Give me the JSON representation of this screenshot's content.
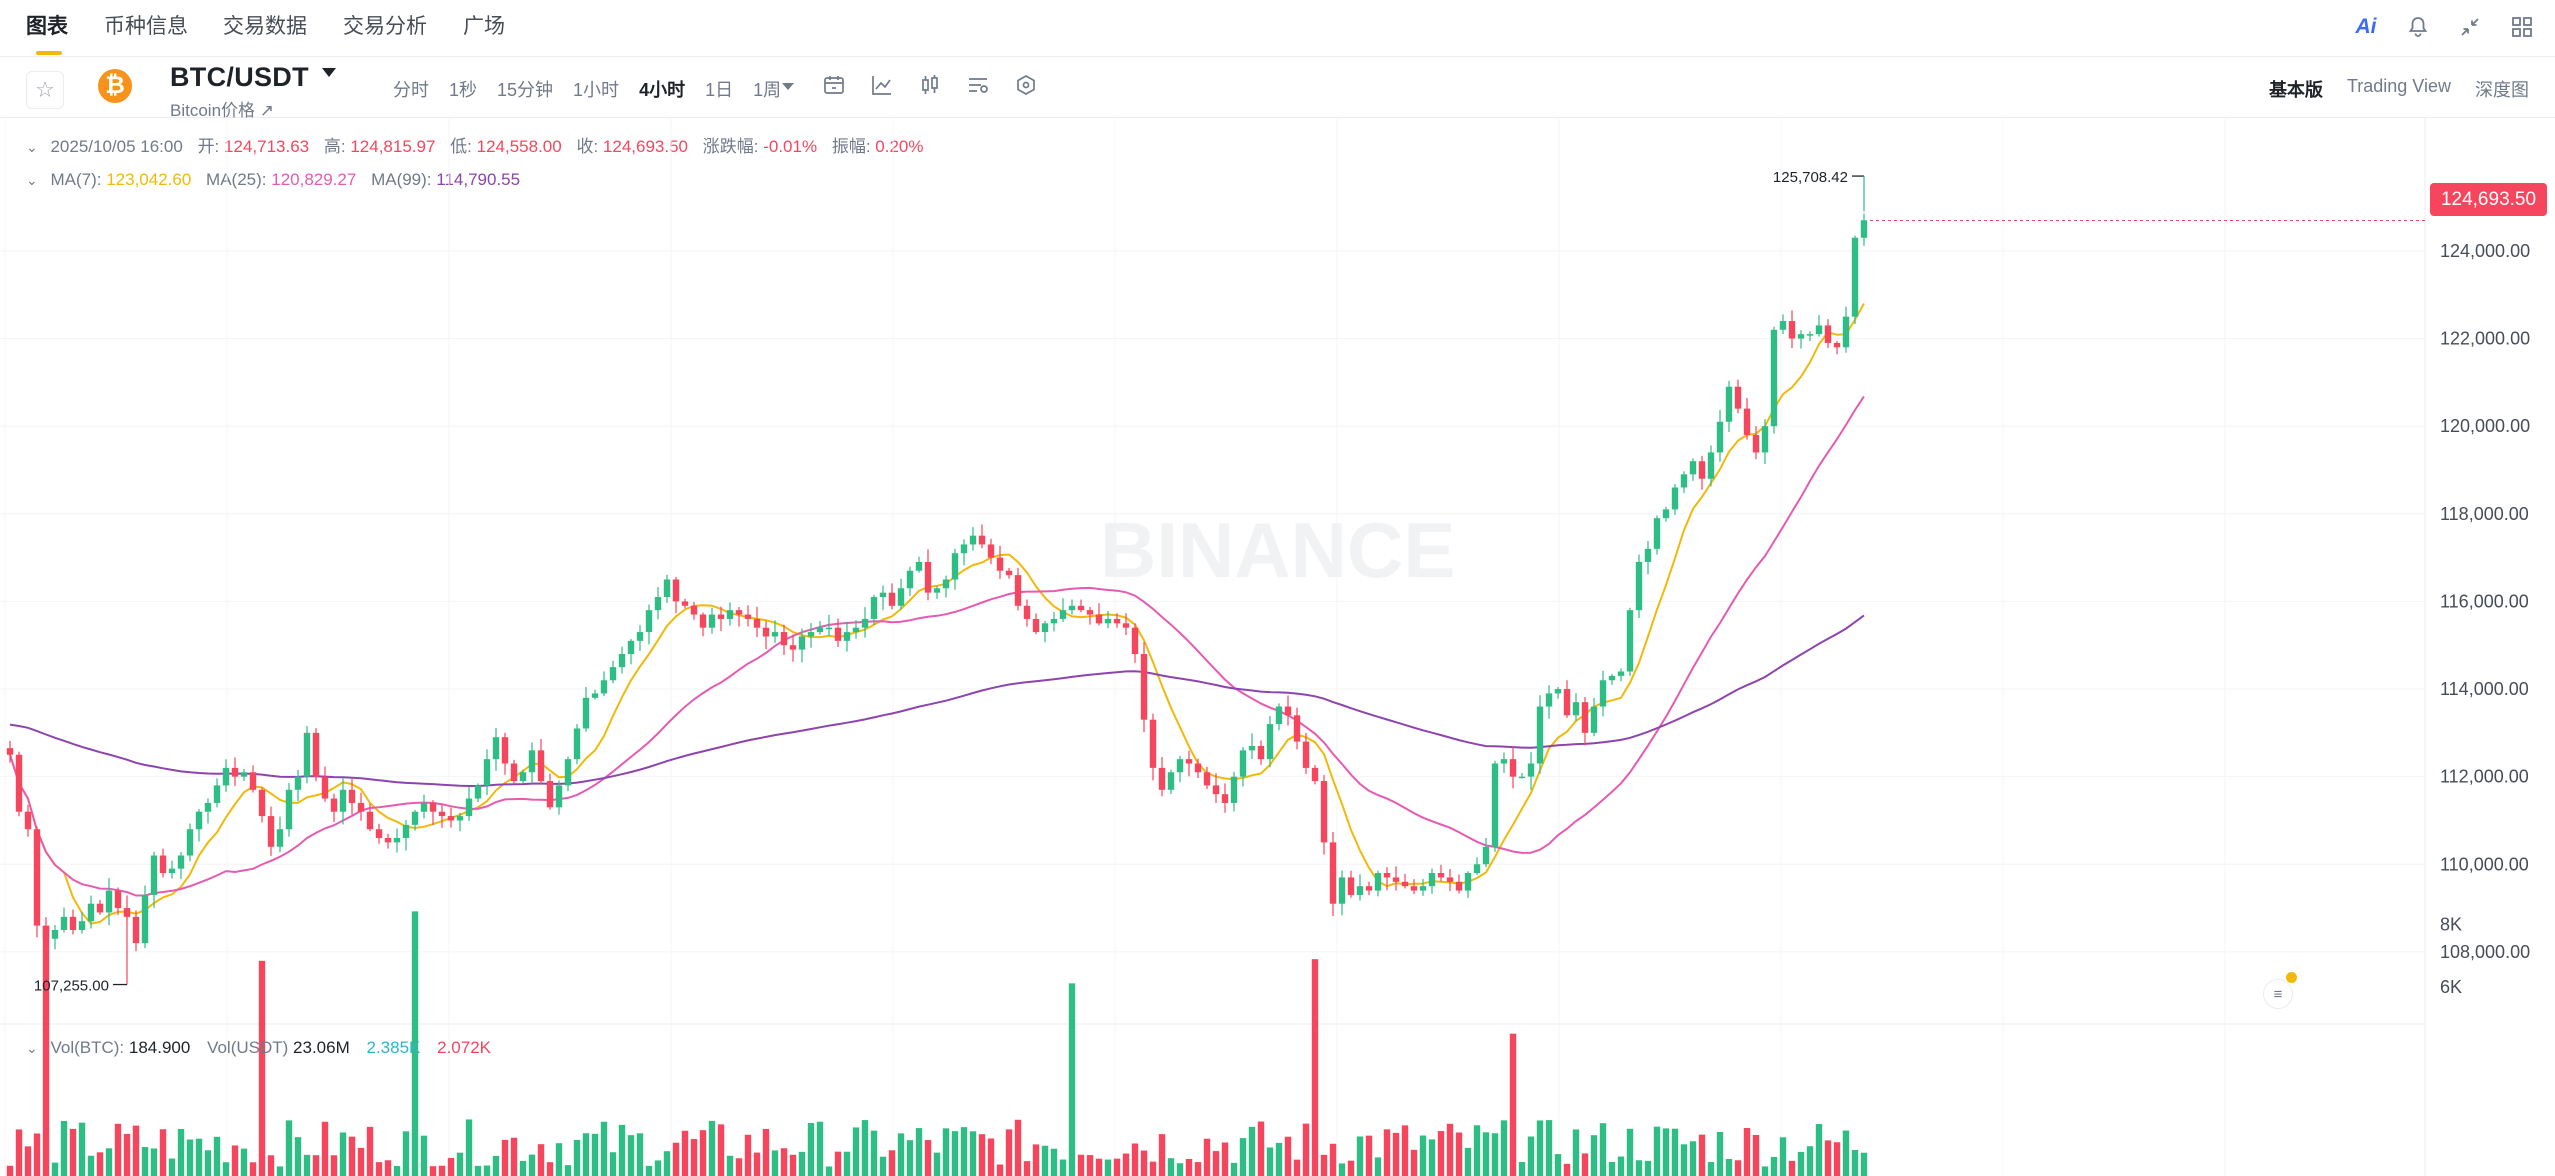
{
  "tabs": [
    {
      "label": "图表",
      "active": true
    },
    {
      "label": "币种信息",
      "active": false
    },
    {
      "label": "交易数据",
      "active": false
    },
    {
      "label": "交易分析",
      "active": false
    },
    {
      "label": "广场",
      "active": false
    }
  ],
  "top_icons": [
    "ai-icon",
    "bell-icon",
    "collapse-icon",
    "grid-icon"
  ],
  "ai_label": "Ai",
  "symbol": {
    "pair": "BTC/USDT",
    "subtitle": "Bitcoin价格 ↗",
    "coin_glyph": "₿"
  },
  "intervals": [
    {
      "label": "分时",
      "active": false
    },
    {
      "label": "1秒",
      "active": false
    },
    {
      "label": "15分钟",
      "active": false
    },
    {
      "label": "1小时",
      "active": false
    },
    {
      "label": "4小时",
      "active": true
    },
    {
      "label": "1日",
      "active": false
    },
    {
      "label": "1周",
      "active": false
    }
  ],
  "views": [
    {
      "label": "基本版",
      "active": true
    },
    {
      "label": "Trading View",
      "active": false
    },
    {
      "label": "深度图",
      "active": false
    }
  ],
  "ohlc": {
    "datetime": "2025/10/05 16:00",
    "open_label": "开:",
    "open": "124,713.63",
    "high_label": "高:",
    "high": "124,815.97",
    "low_label": "低:",
    "low": "124,558.00",
    "close_label": "收:",
    "close": "124,693.50",
    "change_label": "涨跌幅:",
    "change": "-0.01%",
    "amp_label": "振幅:",
    "amp": "0.20%"
  },
  "ma": {
    "ma7_label": "MA(7):",
    "ma7": "123,042.60",
    "ma25_label": "MA(25):",
    "ma25": "120,829.27",
    "ma99_label": "MA(99):",
    "ma99": "114,790.55"
  },
  "current_price": "124,693.50",
  "volume": {
    "btc_label": "Vol(BTC):",
    "btc": "184.900",
    "usdt_label": "Vol(USDT)",
    "usdt": "23.06M",
    "ma5": "2.385K",
    "ma10": "2.072K"
  },
  "colors": {
    "up": "#2ebd85",
    "down": "#f6465d",
    "ma7": "#f0b90b",
    "ma25": "#e45bb1",
    "ma99": "#8e44ad",
    "accent": "#f0b90b"
  },
  "watermark": "BINANCE",
  "chart_data": {
    "type": "candlestick",
    "interval": "4小时",
    "ylim": [
      106400,
      126600
    ],
    "y_ticks": [
      "124,000.00",
      "122,000.00",
      "120,000.00",
      "118,000.00",
      "116,000.00",
      "114,000.00",
      "112,000.00",
      "110,000.00",
      "108,000.00"
    ],
    "y_tick_values": [
      124000,
      122000,
      120000,
      118000,
      116000,
      114000,
      112000,
      110000,
      108000
    ],
    "high_marker": {
      "label": "125,708.42",
      "value": 125708.42
    },
    "low_marker": {
      "label": "107,255.00",
      "value": 107255
    },
    "vol_ticks": [
      "8K",
      "6K"
    ],
    "vol_tick_values": [
      8000,
      6000
    ],
    "closes": [
      112500,
      111200,
      110800,
      108600,
      108300,
      108500,
      108800,
      108500,
      108700,
      109100,
      108900,
      109400,
      109000,
      108800,
      108200,
      109300,
      110200,
      109800,
      109900,
      110200,
      110800,
      111200,
      111400,
      111800,
      112200,
      112000,
      112100,
      111700,
      111100,
      110400,
      110800,
      111700,
      112000,
      113000,
      112000,
      111500,
      111200,
      111700,
      111400,
      111200,
      110800,
      110600,
      110500,
      110600,
      110900,
      111200,
      111400,
      111200,
      111100,
      111000,
      111100,
      111500,
      111800,
      112400,
      112900,
      112300,
      111900,
      112100,
      112600,
      111900,
      111300,
      111800,
      112400,
      113100,
      113800,
      113900,
      114200,
      114500,
      114800,
      115100,
      115300,
      115800,
      116100,
      116500,
      116000,
      115900,
      115700,
      115400,
      115700,
      115600,
      115800,
      115700,
      115600,
      115400,
      115200,
      115300,
      115000,
      114900,
      115200,
      115300,
      115400,
      115400,
      115100,
      115300,
      115400,
      115600,
      116100,
      116200,
      115900,
      116300,
      116700,
      116900,
      116200,
      116300,
      116500,
      117100,
      117300,
      117500,
      117300,
      117000,
      116700,
      116600,
      115900,
      115600,
      115300,
      115500,
      115600,
      115800,
      115900,
      115800,
      115700,
      115500,
      115600,
      115500,
      115400,
      114800,
      113300,
      112200,
      111700,
      112100,
      112400,
      112300,
      112100,
      111800,
      111600,
      111400,
      112000,
      112600,
      112700,
      112400,
      113200,
      113600,
      113400,
      112800,
      112200,
      111900,
      110500,
      109100,
      109700,
      109300,
      109500,
      109400,
      109800,
      109700,
      109600,
      109500,
      109400,
      109500,
      109800,
      109700,
      109600,
      109400,
      109800,
      110000,
      110400,
      112300,
      112400,
      112000,
      112000,
      112300,
      113600,
      113900,
      114000,
      113400,
      113700,
      113000,
      113600,
      114200,
      114300,
      114400,
      115800,
      116900,
      117200,
      117900,
      118100,
      118600,
      118900,
      119200,
      118800,
      119400,
      120100,
      120900,
      120400,
      119800,
      119400,
      120000,
      122200,
      122400,
      122000,
      122100,
      122100,
      122300,
      121900,
      121800,
      122500,
      124300,
      124700
    ]
  }
}
